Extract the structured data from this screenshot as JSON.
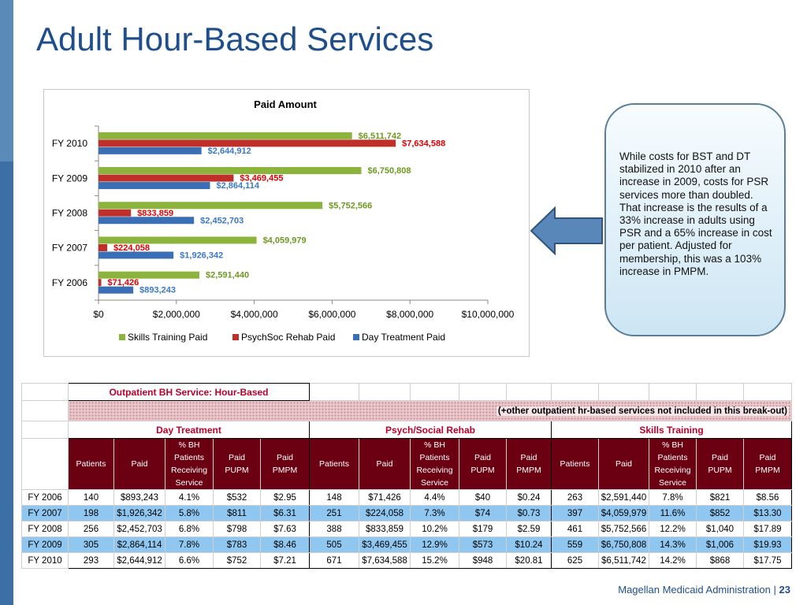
{
  "page": {
    "title": "Adult Hour-Based Services",
    "footer_org": "Magellan Medicaid Administration",
    "footer_sep": "|",
    "page_number": "23"
  },
  "chart_data": {
    "type": "bar",
    "orientation": "horizontal",
    "title": "Paid Amount",
    "categories": [
      "FY 2006",
      "FY 2007",
      "FY 2008",
      "FY 2009",
      "FY 2010"
    ],
    "series": [
      {
        "name": "Skills Training Paid",
        "color": "#8cb43c",
        "values": [
          2591440,
          4059979,
          5752566,
          6750808,
          6511742
        ],
        "labels": [
          "$2,591,440",
          "$4,059,979",
          "$5,752,566",
          "$6,750,808",
          "$6,511,742"
        ]
      },
      {
        "name": "PsychSoc Rehab Paid",
        "color": "#c0302a",
        "values": [
          71426,
          224058,
          833859,
          3469455,
          7634588
        ],
        "labels": [
          "$71,426",
          "$224,058",
          "$833,859",
          "$3,469,455",
          "$7,634,588"
        ]
      },
      {
        "name": "Day Treatment Paid",
        "color": "#3a6fb5",
        "values": [
          893243,
          1926342,
          2452703,
          2864114,
          2644912
        ],
        "labels": [
          "$893,243",
          "$1,926,342",
          "$2,452,703",
          "$2,864,114",
          "$2,644,912"
        ]
      }
    ],
    "xlim": [
      0,
      10000000
    ],
    "xticks": [
      0,
      2000000,
      4000000,
      6000000,
      8000000,
      10000000
    ],
    "xtick_labels": [
      "$0",
      "$2,000,000",
      "$4,000,000",
      "$6,000,000",
      "$8,000,000",
      "$10,000,000"
    ],
    "label_colors": [
      "#6e9a22",
      "#e00000",
      "#3a78c8"
    ],
    "legend_position": "bottom",
    "grid": false
  },
  "callout": {
    "text": "While costs for BST and DT stabilized in 2010 after an increase in 2009, costs for PSR services more than doubled. That increase is the results of a 33% increase in adults using PSR and a 65% increase in cost per patient. Adjusted for membership, this was a 103% increase in PMPM."
  },
  "table": {
    "title": "Outpatient BH Service: Hour-Based",
    "note": "(+other outpatient hr-based services not included in this break-out)",
    "groups": [
      "Day Treatment",
      "Psych/Social Rehab",
      "Skills Training"
    ],
    "columns": [
      "Patients",
      "Paid",
      "% BH Patients Receiving Service",
      "Paid PUPM",
      "Paid PMPM"
    ],
    "rows": [
      {
        "year": "FY 2006",
        "values": [
          "140",
          "$893,243",
          "4.1%",
          "$532",
          "$2.95",
          "148",
          "$71,426",
          "4.4%",
          "$40",
          "$0.24",
          "263",
          "$2,591,440",
          "7.8%",
          "$821",
          "$8.56"
        ]
      },
      {
        "year": "FY 2007",
        "values": [
          "198",
          "$1,926,342",
          "5.8%",
          "$811",
          "$6.31",
          "251",
          "$224,058",
          "7.3%",
          "$74",
          "$0.73",
          "397",
          "$4,059,979",
          "11.6%",
          "$852",
          "$13.30"
        ]
      },
      {
        "year": "FY 2008",
        "values": [
          "256",
          "$2,452,703",
          "6.8%",
          "$798",
          "$7.63",
          "388",
          "$833,859",
          "10.2%",
          "$179",
          "$2.59",
          "461",
          "$5,752,566",
          "12.2%",
          "$1,040",
          "$17.89"
        ]
      },
      {
        "year": "FY 2009",
        "values": [
          "305",
          "$2,864,114",
          "7.8%",
          "$783",
          "$8.46",
          "505",
          "$3,469,455",
          "12.9%",
          "$573",
          "$10.24",
          "559",
          "$6,750,808",
          "14.3%",
          "$1,006",
          "$19.93"
        ]
      },
      {
        "year": "FY 2010",
        "values": [
          "293",
          "$2,644,912",
          "6.6%",
          "$752",
          "$7.21",
          "671",
          "$7,634,588",
          "15.2%",
          "$948",
          "$20.81",
          "625",
          "$6,511,742",
          "14.2%",
          "$868",
          "$17.75"
        ]
      }
    ]
  }
}
